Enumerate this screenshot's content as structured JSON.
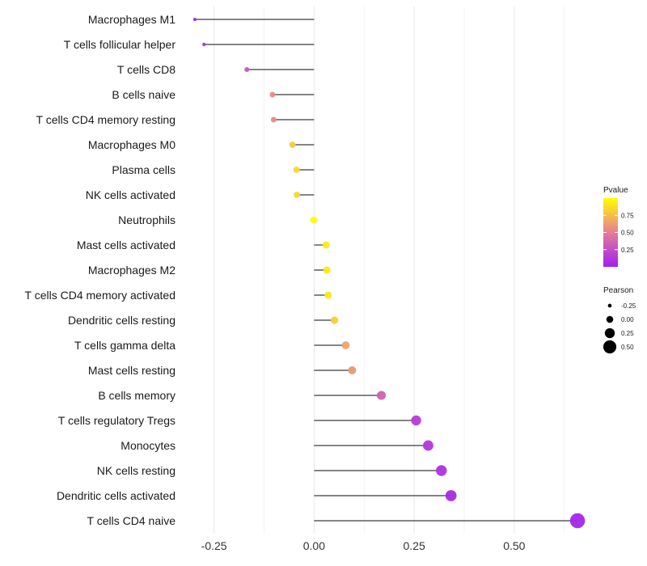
{
  "chart_data": {
    "type": "lollipop",
    "categories": [
      "Macrophages M1",
      "T cells follicular helper",
      "T cells CD8",
      "B cells naive",
      "T cells CD4 memory resting",
      "Macrophages M0",
      "Plasma cells",
      "NK cells activated",
      "Neutrophils",
      "Mast cells activated",
      "Macrophages M2",
      "T cells CD4 memory activated",
      "Dendritic cells resting",
      "T cells gamma delta",
      "Mast cells resting",
      "B cells memory",
      "T cells regulatory  Tregs ",
      "Monocytes",
      "NK cells resting",
      "Dendritic cells activated",
      "T cells CD4 naive"
    ],
    "pearson": [
      -0.298,
      -0.275,
      -0.168,
      -0.104,
      -0.101,
      -0.054,
      -0.044,
      -0.043,
      -0.001,
      0.03,
      0.032,
      0.035,
      0.051,
      0.079,
      0.095,
      0.168,
      0.255,
      0.285,
      0.318,
      0.342,
      0.658
    ],
    "pvalue": [
      0.03,
      0.1,
      0.3,
      0.55,
      0.55,
      0.8,
      0.85,
      0.85,
      0.99,
      0.92,
      0.92,
      0.92,
      0.82,
      0.65,
      0.6,
      0.35,
      0.15,
      0.12,
      0.1,
      0.06,
      0.03
    ],
    "xlabel": "",
    "ylabel": "",
    "xlim": [
      -0.32,
      0.67
    ],
    "x_ticks": [
      -0.25,
      0.0,
      0.25,
      0.5
    ],
    "x_tick_labels": [
      "-0.25",
      "0.00",
      "0.25",
      "0.50"
    ],
    "legend": {
      "position": "right",
      "color": {
        "title": "Pvalue",
        "ticks": [
          "0.25",
          "0.50",
          "0.75"
        ],
        "tick_values": [
          0.25,
          0.5,
          0.75
        ],
        "range": [
          0.0,
          1.0
        ],
        "low_color": "#a020f0",
        "high_color": "#ffff00"
      },
      "size": {
        "title": "Pearson",
        "labels": [
          "-0.25",
          "0.00",
          "0.25",
          "0.50"
        ],
        "values": [
          -0.25,
          0.0,
          0.25,
          0.5
        ]
      }
    },
    "colors": {
      "stem": "#3a3a3a",
      "grid": "#ebebeb",
      "text": "#1a1a1a"
    }
  }
}
